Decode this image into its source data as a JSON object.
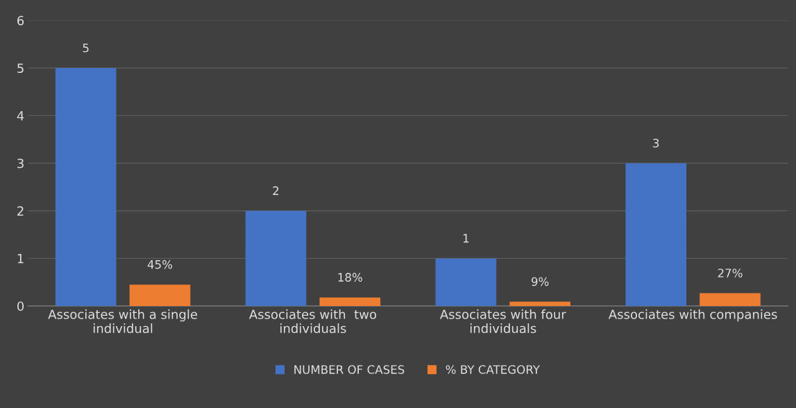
{
  "chart_data": {
    "type": "bar",
    "categories": [
      "Associates with a single\nindividual",
      "Associates with  two\nindividuals",
      "Associates with four\nindividuals",
      "Associates with companies"
    ],
    "series": [
      {
        "name": "NUMBER OF CASES",
        "color": "#4472c4",
        "values": [
          5,
          2,
          1,
          3
        ],
        "value_labels": [
          "5",
          "2",
          "1",
          "3"
        ]
      },
      {
        "name": "% BY CATEGORY",
        "color": "#ed7d31",
        "values": [
          0.45,
          0.18,
          0.09,
          0.27
        ],
        "value_labels": [
          "45%",
          "18%",
          "9%",
          "27%"
        ]
      }
    ],
    "ylim": [
      0,
      6
    ],
    "yticks": [
      0,
      1,
      2,
      3,
      4,
      5,
      6
    ],
    "grid": "y",
    "legend": "bottom"
  }
}
